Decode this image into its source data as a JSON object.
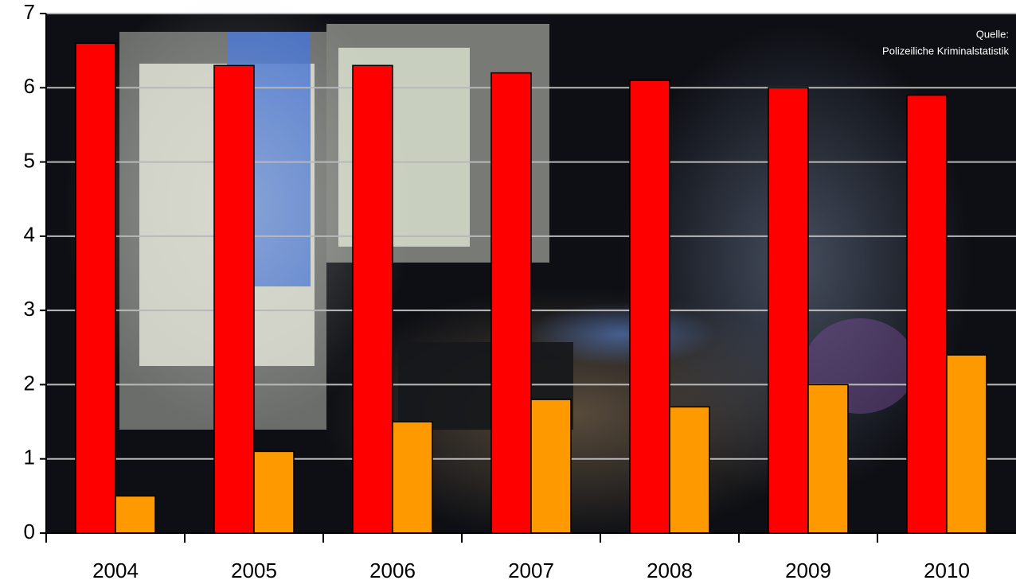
{
  "chart_data": {
    "type": "bar",
    "categories": [
      "2004",
      "2005",
      "2006",
      "2007",
      "2008",
      "2009",
      "2010"
    ],
    "series": [
      {
        "color": "#ff0000",
        "values": [
          6.6,
          6.3,
          6.3,
          6.2,
          6.1,
          6.0,
          5.9
        ]
      },
      {
        "color": "#ff9900",
        "values": [
          0.5,
          1.1,
          1.5,
          1.8,
          1.7,
          2.0,
          2.4
        ]
      }
    ],
    "ylim": [
      0,
      7
    ],
    "yticks": [
      0,
      1,
      2,
      3,
      4,
      5,
      6,
      7
    ],
    "grid": true,
    "source": [
      "Quelle:",
      "Polizeiliche Kriminalstatistik"
    ]
  }
}
